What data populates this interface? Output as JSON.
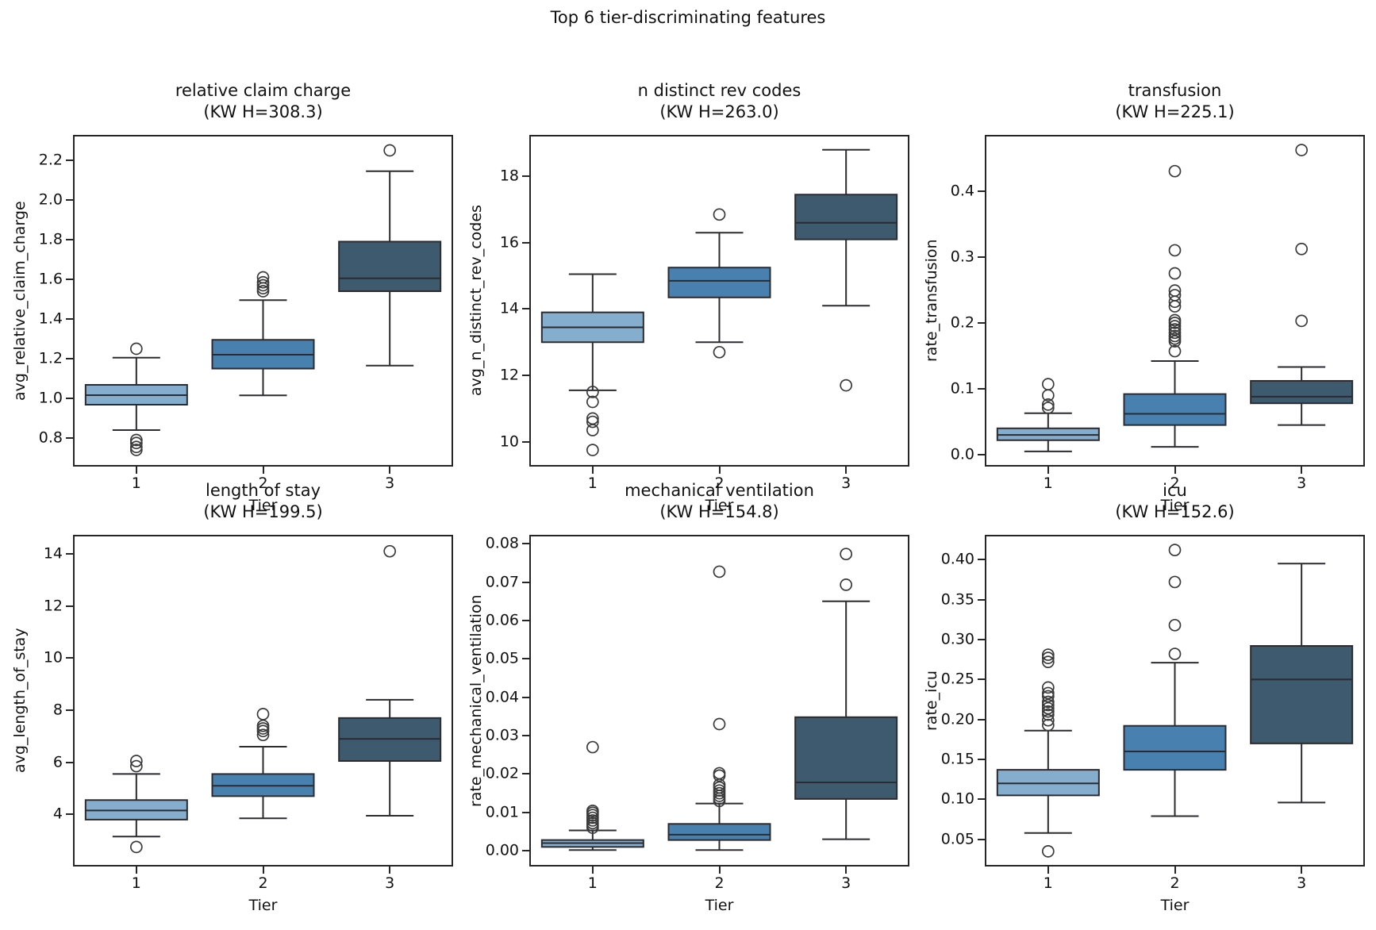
{
  "figure": {
    "title": "Top 6 tier-discriminating features"
  },
  "colors": {
    "tier1_fill": "#85aece",
    "tier2_fill": "#4881b0",
    "tier3_fill": "#3d5a6e",
    "line": "#2b2b31",
    "flier_edge": "#3a3a3a",
    "frame": "#262626",
    "text": "#111111"
  },
  "chart_data": {
    "type": "bar",
    "subtype": "boxplot-grid-2x3",
    "x_categories": [
      "1",
      "2",
      "3"
    ],
    "xlabel": "Tier",
    "legend": "none",
    "grid": "off",
    "charts": [
      {
        "title_line1": "relative claim charge",
        "title_line2": "(KW H=308.3)",
        "kw_h": 308.3,
        "ylabel": "avg_relative_claim_charge",
        "ylim": [
          0.656,
          2.328
        ],
        "ytick_values": [
          0.8,
          1.0,
          1.2,
          1.4,
          1.6,
          1.8,
          2.0,
          2.2
        ],
        "ytick_labels": [
          "0.8",
          "1.0",
          "1.2",
          "1.4",
          "1.6",
          "1.8",
          "2.0",
          "2.2"
        ],
        "boxes": [
          {
            "tier": "1",
            "whislo": 0.84,
            "q1": 0.968,
            "med": 1.016,
            "q3": 1.068,
            "whishi": 1.205,
            "fliers": [
              1.25,
              0.79,
              0.775,
              0.755,
              0.74
            ]
          },
          {
            "tier": "2",
            "whislo": 1.015,
            "q1": 1.15,
            "med": 1.22,
            "q3": 1.295,
            "whishi": 1.495,
            "fliers": [
              1.54,
              1.555,
              1.57,
              1.585,
              1.61
            ]
          },
          {
            "tier": "3",
            "whislo": 1.165,
            "q1": 1.54,
            "med": 1.605,
            "q3": 1.79,
            "whishi": 2.145,
            "fliers": [
              2.25
            ]
          }
        ]
      },
      {
        "title_line1": "n distinct rev codes",
        "title_line2": "(KW H=263.0)",
        "kw_h": 263.0,
        "ylabel": "avg_n_distinct_rev_codes",
        "ylim": [
          9.25,
          19.25
        ],
        "ytick_values": [
          10,
          12,
          14,
          16,
          18
        ],
        "ytick_labels": [
          "10",
          "12",
          "14",
          "16",
          "18"
        ],
        "boxes": [
          {
            "tier": "1",
            "whislo": 11.55,
            "q1": 13.0,
            "med": 13.45,
            "q3": 13.9,
            "whishi": 15.05,
            "fliers": [
              11.5,
              11.2,
              10.7,
              10.6,
              10.35,
              9.75
            ]
          },
          {
            "tier": "2",
            "whislo": 13.0,
            "q1": 14.35,
            "med": 14.85,
            "q3": 15.25,
            "whishi": 16.3,
            "fliers": [
              16.85,
              12.7
            ]
          },
          {
            "tier": "3",
            "whislo": 14.1,
            "q1": 16.1,
            "med": 16.6,
            "q3": 17.45,
            "whishi": 18.8,
            "fliers": [
              11.7
            ]
          }
        ]
      },
      {
        "title_line1": "transfusion",
        "title_line2": "(KW H=225.1)",
        "kw_h": 225.1,
        "ylabel": "rate_transfusion",
        "ylim": [
          -0.018,
          0.485
        ],
        "ytick_values": [
          0.0,
          0.1,
          0.2,
          0.3,
          0.4
        ],
        "ytick_labels": [
          "0.0",
          "0.1",
          "0.2",
          "0.3",
          "0.4"
        ],
        "boxes": [
          {
            "tier": "1",
            "whislo": 0.005,
            "q1": 0.022,
            "med": 0.03,
            "q3": 0.04,
            "whishi": 0.063,
            "fliers": [
              0.071,
              0.076,
              0.09,
              0.107
            ]
          },
          {
            "tier": "2",
            "whislo": 0.012,
            "q1": 0.045,
            "med": 0.062,
            "q3": 0.092,
            "whishi": 0.142,
            "fliers": [
              0.157,
              0.172,
              0.176,
              0.18,
              0.185,
              0.19,
              0.195,
              0.2,
              0.204,
              0.225,
              0.232,
              0.242,
              0.249,
              0.275,
              0.31,
              0.43
            ]
          },
          {
            "tier": "3",
            "whislo": 0.045,
            "q1": 0.078,
            "med": 0.088,
            "q3": 0.112,
            "whishi": 0.133,
            "fliers": [
              0.203,
              0.312,
              0.462
            ]
          }
        ]
      },
      {
        "title_line1": "length of stay",
        "title_line2": "(KW H=199.5)",
        "kw_h": 199.5,
        "ylabel": "avg_length_of_stay",
        "ylim": [
          2.0,
          14.73
        ],
        "ytick_values": [
          4,
          6,
          8,
          10,
          12,
          14
        ],
        "ytick_labels": [
          "4",
          "6",
          "8",
          "10",
          "12",
          "14"
        ],
        "boxes": [
          {
            "tier": "1",
            "whislo": 3.15,
            "q1": 3.8,
            "med": 4.15,
            "q3": 4.55,
            "whishi": 5.55,
            "fliers": [
              5.85,
              6.05,
              2.75
            ]
          },
          {
            "tier": "2",
            "whislo": 3.85,
            "q1": 4.7,
            "med": 5.1,
            "q3": 5.55,
            "whishi": 6.6,
            "fliers": [
              7.05,
              7.2,
              7.3,
              7.4,
              7.85
            ]
          },
          {
            "tier": "3",
            "whislo": 3.95,
            "q1": 6.05,
            "med": 6.9,
            "q3": 7.7,
            "whishi": 8.4,
            "fliers": [
              14.1
            ]
          }
        ]
      },
      {
        "title_line1": "mechanical ventilation",
        "title_line2": "(KW H=154.8)",
        "kw_h": 154.8,
        "ylabel": "rate_mechanical_ventilation",
        "ylim": [
          -0.0041,
          0.0823
        ],
        "ytick_values": [
          0.0,
          0.01,
          0.02,
          0.03,
          0.04,
          0.05,
          0.06,
          0.07,
          0.08
        ],
        "ytick_labels": [
          "0.00",
          "0.01",
          "0.02",
          "0.03",
          "0.04",
          "0.05",
          "0.06",
          "0.07",
          "0.08"
        ],
        "boxes": [
          {
            "tier": "1",
            "whislo": 0.0002,
            "q1": 0.001,
            "med": 0.002,
            "q3": 0.0028,
            "whishi": 0.0053,
            "fliers": [
              0.006,
              0.0066,
              0.0072,
              0.0079,
              0.0086,
              0.0093,
              0.0099,
              0.0104,
              0.027
            ]
          },
          {
            "tier": "2",
            "whislo": 0.0002,
            "q1": 0.0028,
            "med": 0.0042,
            "q3": 0.007,
            "whishi": 0.0123,
            "fliers": [
              0.013,
              0.0136,
              0.0143,
              0.015,
              0.0157,
              0.0165,
              0.0172,
              0.0196,
              0.0202,
              0.033,
              0.0727
            ]
          },
          {
            "tier": "3",
            "whislo": 0.003,
            "q1": 0.0135,
            "med": 0.0178,
            "q3": 0.0348,
            "whishi": 0.065,
            "fliers": [
              0.0693,
              0.0773
            ]
          }
        ]
      },
      {
        "title_line1": "icu",
        "title_line2": "(KW H=152.6)",
        "kw_h": 152.6,
        "ylabel": "rate_icu",
        "ylim": [
          0.016,
          0.431
        ],
        "ytick_values": [
          0.05,
          0.1,
          0.15,
          0.2,
          0.25,
          0.3,
          0.35,
          0.4
        ],
        "ytick_labels": [
          "0.05",
          "0.10",
          "0.15",
          "0.20",
          "0.25",
          "0.30",
          "0.35",
          "0.40"
        ],
        "boxes": [
          {
            "tier": "1",
            "whislo": 0.058,
            "q1": 0.105,
            "med": 0.12,
            "q3": 0.137,
            "whishi": 0.186,
            "fliers": [
              0.193,
              0.199,
              0.206,
              0.21,
              0.214,
              0.218,
              0.222,
              0.229,
              0.233,
              0.24,
              0.272,
              0.277,
              0.281,
              0.035
            ]
          },
          {
            "tier": "2",
            "whislo": 0.079,
            "q1": 0.137,
            "med": 0.16,
            "q3": 0.192,
            "whishi": 0.271,
            "fliers": [
              0.282,
              0.318,
              0.372,
              0.412
            ]
          },
          {
            "tier": "3",
            "whislo": 0.096,
            "q1": 0.17,
            "med": 0.25,
            "q3": 0.292,
            "whishi": 0.395,
            "fliers": []
          }
        ]
      }
    ]
  }
}
